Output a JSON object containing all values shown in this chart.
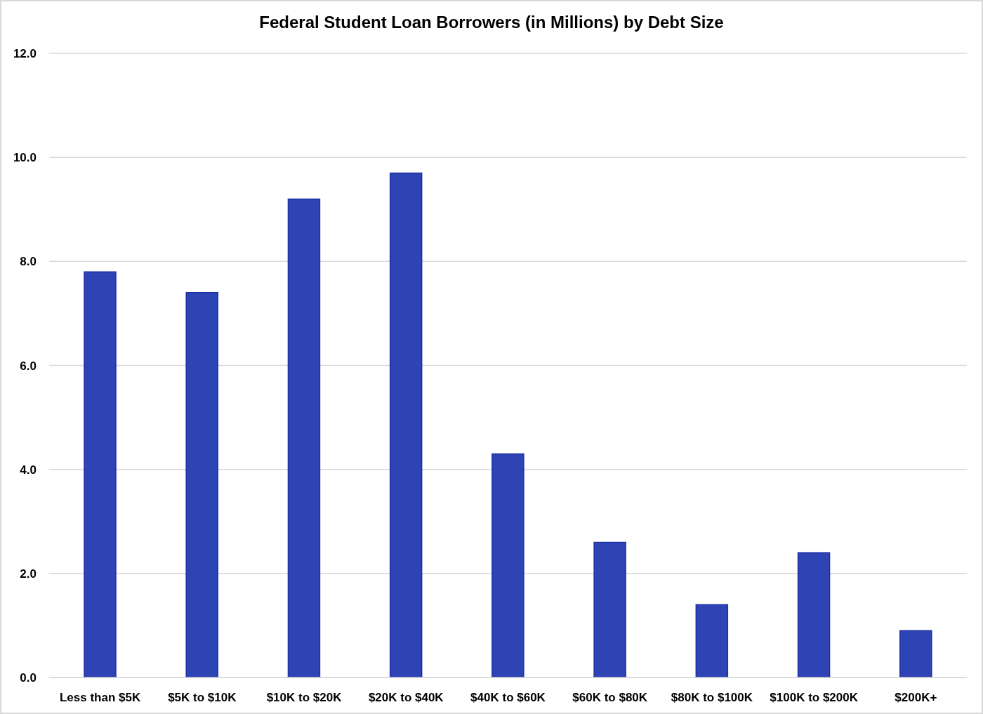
{
  "chart_data": {
    "type": "bar",
    "title": "Federal Student Loan Borrowers (in Millions) by Debt Size",
    "categories": [
      "Less than $5K",
      "$5K to $10K",
      "$10K to $20K",
      "$20K to $40K",
      "$40K to $60K",
      "$60K to $80K",
      "$80K to $100K",
      "$100K to $200K",
      "$200K+"
    ],
    "values": [
      7.8,
      7.4,
      9.2,
      9.7,
      4.3,
      2.6,
      1.4,
      2.4,
      0.9
    ],
    "color": "#2e44b4",
    "ylim": [
      0,
      12
    ],
    "yticks": [
      {
        "value": 0,
        "label": "0.0"
      },
      {
        "value": 2,
        "label": "2.0"
      },
      {
        "value": 4,
        "label": "4.0"
      },
      {
        "value": 6,
        "label": "6.0"
      },
      {
        "value": 8,
        "label": "8.0"
      },
      {
        "value": 10,
        "label": "10.0"
      },
      {
        "value": 12,
        "label": "12.0"
      }
    ],
    "grid": "y"
  }
}
